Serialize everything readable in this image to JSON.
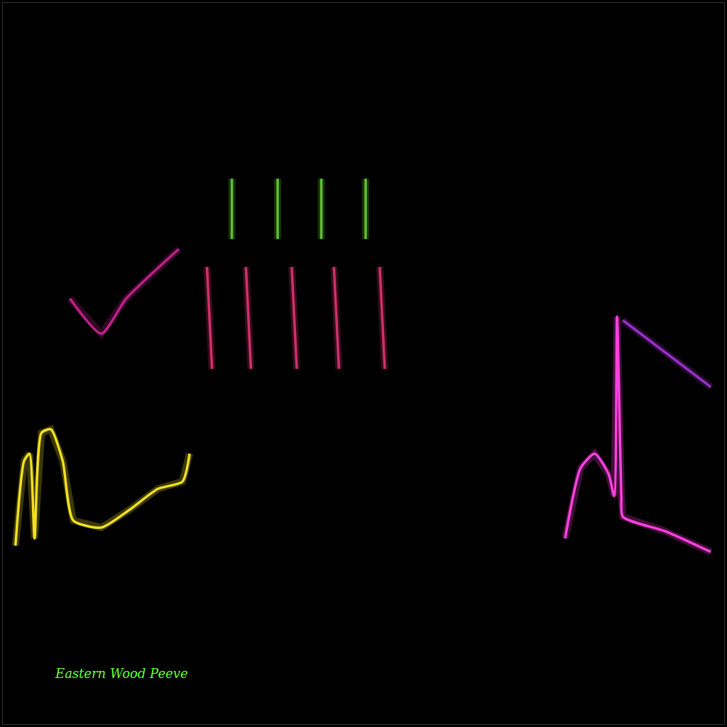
{
  "chart_data": {
    "type": "line",
    "annotation": "Eastern Wood Peeve",
    "xlim": [
      0,
      2
    ],
    "ylim": [
      0,
      8
    ],
    "tick_labels": false,
    "grid": false,
    "series": [
      {
        "color": "#f0e020",
        "x": [
          0.035,
          0.059,
          0.074,
          0.088,
          0.107,
          0.133,
          0.166,
          0.195,
          0.273,
          0.352,
          0.43,
          0.498,
          0.518
        ],
        "values": [
          1.98,
          2.92,
          3.0,
          2.06,
          3.23,
          3.27,
          2.92,
          2.26,
          2.18,
          2.38,
          2.61,
          2.69,
          3.0
        ]
      },
      {
        "color": "#ff40e0",
        "x": [
          1.559,
          1.602,
          1.641,
          1.68,
          1.695,
          1.703,
          1.715,
          1.719,
          1.836,
          1.963
        ],
        "values": [
          2.06,
          2.84,
          3.0,
          2.77,
          2.53,
          4.52,
          2.53,
          2.3,
          2.14,
          1.91
        ]
      },
      {
        "color": "#c0208a",
        "x": [
          0.186,
          0.273,
          0.342,
          0.488
        ],
        "values": [
          4.72,
          4.33,
          4.72,
          5.27
        ]
      },
      {
        "color": "#9a30c8",
        "x": [
          1.719,
          1.963
        ],
        "values": [
          4.48,
          3.74
        ]
      },
      {
        "color": "#d0306a",
        "x": [
          0.566,
          0.58,
          null,
          0.674,
          0.688,
          null,
          0.801,
          0.815,
          null,
          0.918,
          0.932,
          null,
          1.045,
          1.059
        ],
        "values": [
          5.07,
          3.94,
          null,
          5.07,
          3.94,
          null,
          5.07,
          3.94,
          null,
          5.07,
          3.94,
          null,
          5.07,
          3.94
        ]
      },
      {
        "color": "#60c030",
        "x": [
          0.635,
          0.635,
          null,
          0.762,
          0.762,
          null,
          0.883,
          0.883,
          null,
          1.006,
          1.006
        ],
        "values": [
          6.05,
          5.38,
          null,
          6.05,
          5.38,
          null,
          6.05,
          5.38,
          null,
          6.05,
          5.38
        ]
      }
    ]
  }
}
